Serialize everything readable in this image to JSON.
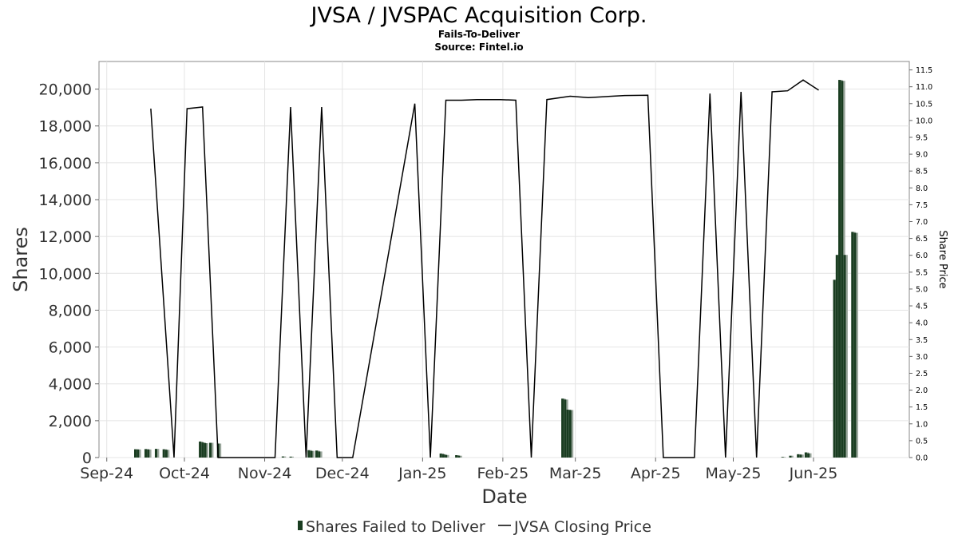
{
  "chart_data": {
    "type": "bar+line",
    "title": "JVSA / JVSPAC Acquisition Corp.",
    "subtitle": "Fails-To-Deliver",
    "source": "Source: Fintel.io",
    "xlabel": "Date",
    "ylabel_left": "Shares",
    "ylabel_right": "Share Price",
    "x_ticks": [
      "Sep-24",
      "Oct-24",
      "Nov-24",
      "Dec-24",
      "Jan-25",
      "Feb-25",
      "Mar-25",
      "Apr-25",
      "May-25",
      "Jun-25"
    ],
    "y_left_ticks": [
      "0",
      "2,000",
      "4,000",
      "6,000",
      "8,000",
      "10,000",
      "12,000",
      "14,000",
      "16,000",
      "18,000",
      "20,000"
    ],
    "y_left_range": [
      0,
      21500
    ],
    "y_right_ticks": [
      "0.0",
      "0.5",
      "1.0",
      "1.5",
      "2.0",
      "2.5",
      "3.0",
      "3.5",
      "4.0",
      "4.5",
      "5.0",
      "5.5",
      "6.0",
      "6.5",
      "7.0",
      "7.5",
      "8.0",
      "8.5",
      "9.0",
      "9.5",
      "10.0",
      "10.5",
      "11.0",
      "11.5"
    ],
    "y_right_range": [
      0,
      11.75
    ],
    "x_range": [
      "2024-08-29",
      "2025-07-08"
    ],
    "grid": true,
    "legend_position": "bottom",
    "series": [
      {
        "name": "Shares Failed to Deliver",
        "kind": "bar",
        "color": "#1a3d21",
        "points": [
          {
            "date": "2024-09-12",
            "value": 450
          },
          {
            "date": "2024-09-13",
            "value": 440
          },
          {
            "date": "2024-09-16",
            "value": 460
          },
          {
            "date": "2024-09-17",
            "value": 440
          },
          {
            "date": "2024-09-20",
            "value": 470
          },
          {
            "date": "2024-09-23",
            "value": 450
          },
          {
            "date": "2024-09-24",
            "value": 420
          },
          {
            "date": "2024-10-07",
            "value": 870
          },
          {
            "date": "2024-10-08",
            "value": 820
          },
          {
            "date": "2024-10-09",
            "value": 780
          },
          {
            "date": "2024-10-11",
            "value": 800
          },
          {
            "date": "2024-10-14",
            "value": 760
          },
          {
            "date": "2024-11-08",
            "value": 60
          },
          {
            "date": "2024-11-11",
            "value": 50
          },
          {
            "date": "2024-11-18",
            "value": 400
          },
          {
            "date": "2024-11-19",
            "value": 360
          },
          {
            "date": "2024-11-21",
            "value": 380
          },
          {
            "date": "2024-11-22",
            "value": 330
          },
          {
            "date": "2025-01-08",
            "value": 220
          },
          {
            "date": "2025-01-09",
            "value": 180
          },
          {
            "date": "2025-01-10",
            "value": 140
          },
          {
            "date": "2025-01-14",
            "value": 130
          },
          {
            "date": "2025-01-15",
            "value": 100
          },
          {
            "date": "2025-02-24",
            "value": 3200
          },
          {
            "date": "2025-02-25",
            "value": 3150
          },
          {
            "date": "2025-02-26",
            "value": 2600
          },
          {
            "date": "2025-02-27",
            "value": 2580
          },
          {
            "date": "2025-05-20",
            "value": 30
          },
          {
            "date": "2025-05-23",
            "value": 100
          },
          {
            "date": "2025-05-26",
            "value": 180
          },
          {
            "date": "2025-05-27",
            "value": 160
          },
          {
            "date": "2025-05-29",
            "value": 280
          },
          {
            "date": "2025-05-30",
            "value": 230
          },
          {
            "date": "2025-06-09",
            "value": 9650
          },
          {
            "date": "2025-06-10",
            "value": 11000
          },
          {
            "date": "2025-06-11",
            "value": 20500
          },
          {
            "date": "2025-06-12",
            "value": 20450
          },
          {
            "date": "2025-06-13",
            "value": 11000
          },
          {
            "date": "2025-06-16",
            "value": 12250
          },
          {
            "date": "2025-06-17",
            "value": 12200
          }
        ]
      },
      {
        "name": "JVSA Closing Price",
        "kind": "line",
        "color": "#000000",
        "points": [
          {
            "date": "2024-09-18",
            "value": 10.35
          },
          {
            "date": "2024-09-27",
            "value": 0
          },
          {
            "date": "2024-10-02",
            "value": 10.35
          },
          {
            "date": "2024-10-08",
            "value": 10.4
          },
          {
            "date": "2024-10-14",
            "value": 0
          },
          {
            "date": "2024-11-05",
            "value": 0
          },
          {
            "date": "2024-11-11",
            "value": 10.4
          },
          {
            "date": "2024-11-17",
            "value": 0
          },
          {
            "date": "2024-11-23",
            "value": 10.4
          },
          {
            "date": "2024-11-29",
            "value": 0
          },
          {
            "date": "2024-12-05",
            "value": 0
          },
          {
            "date": "2024-12-29",
            "value": 10.5
          },
          {
            "date": "2025-01-04",
            "value": 0
          },
          {
            "date": "2025-01-10",
            "value": 10.6
          },
          {
            "date": "2025-01-16",
            "value": 10.6
          },
          {
            "date": "2025-01-22",
            "value": 10.62
          },
          {
            "date": "2025-01-31",
            "value": 10.62
          },
          {
            "date": "2025-02-06",
            "value": 10.6
          },
          {
            "date": "2025-02-12",
            "value": 0
          },
          {
            "date": "2025-02-18",
            "value": 10.62
          },
          {
            "date": "2025-02-27",
            "value": 10.72
          },
          {
            "date": "2025-03-06",
            "value": 10.68
          },
          {
            "date": "2025-03-20",
            "value": 10.74
          },
          {
            "date": "2025-03-29",
            "value": 10.75
          },
          {
            "date": "2025-04-04",
            "value": 0
          },
          {
            "date": "2025-04-16",
            "value": 0
          },
          {
            "date": "2025-04-22",
            "value": 10.8
          },
          {
            "date": "2025-04-28",
            "value": 0
          },
          {
            "date": "2025-05-04",
            "value": 10.85
          },
          {
            "date": "2025-05-10",
            "value": 0
          },
          {
            "date": "2025-05-16",
            "value": 10.85
          },
          {
            "date": "2025-05-22",
            "value": 10.88
          },
          {
            "date": "2025-05-28",
            "value": 11.2
          },
          {
            "date": "2025-06-03",
            "value": 10.9
          }
        ]
      }
    ]
  }
}
